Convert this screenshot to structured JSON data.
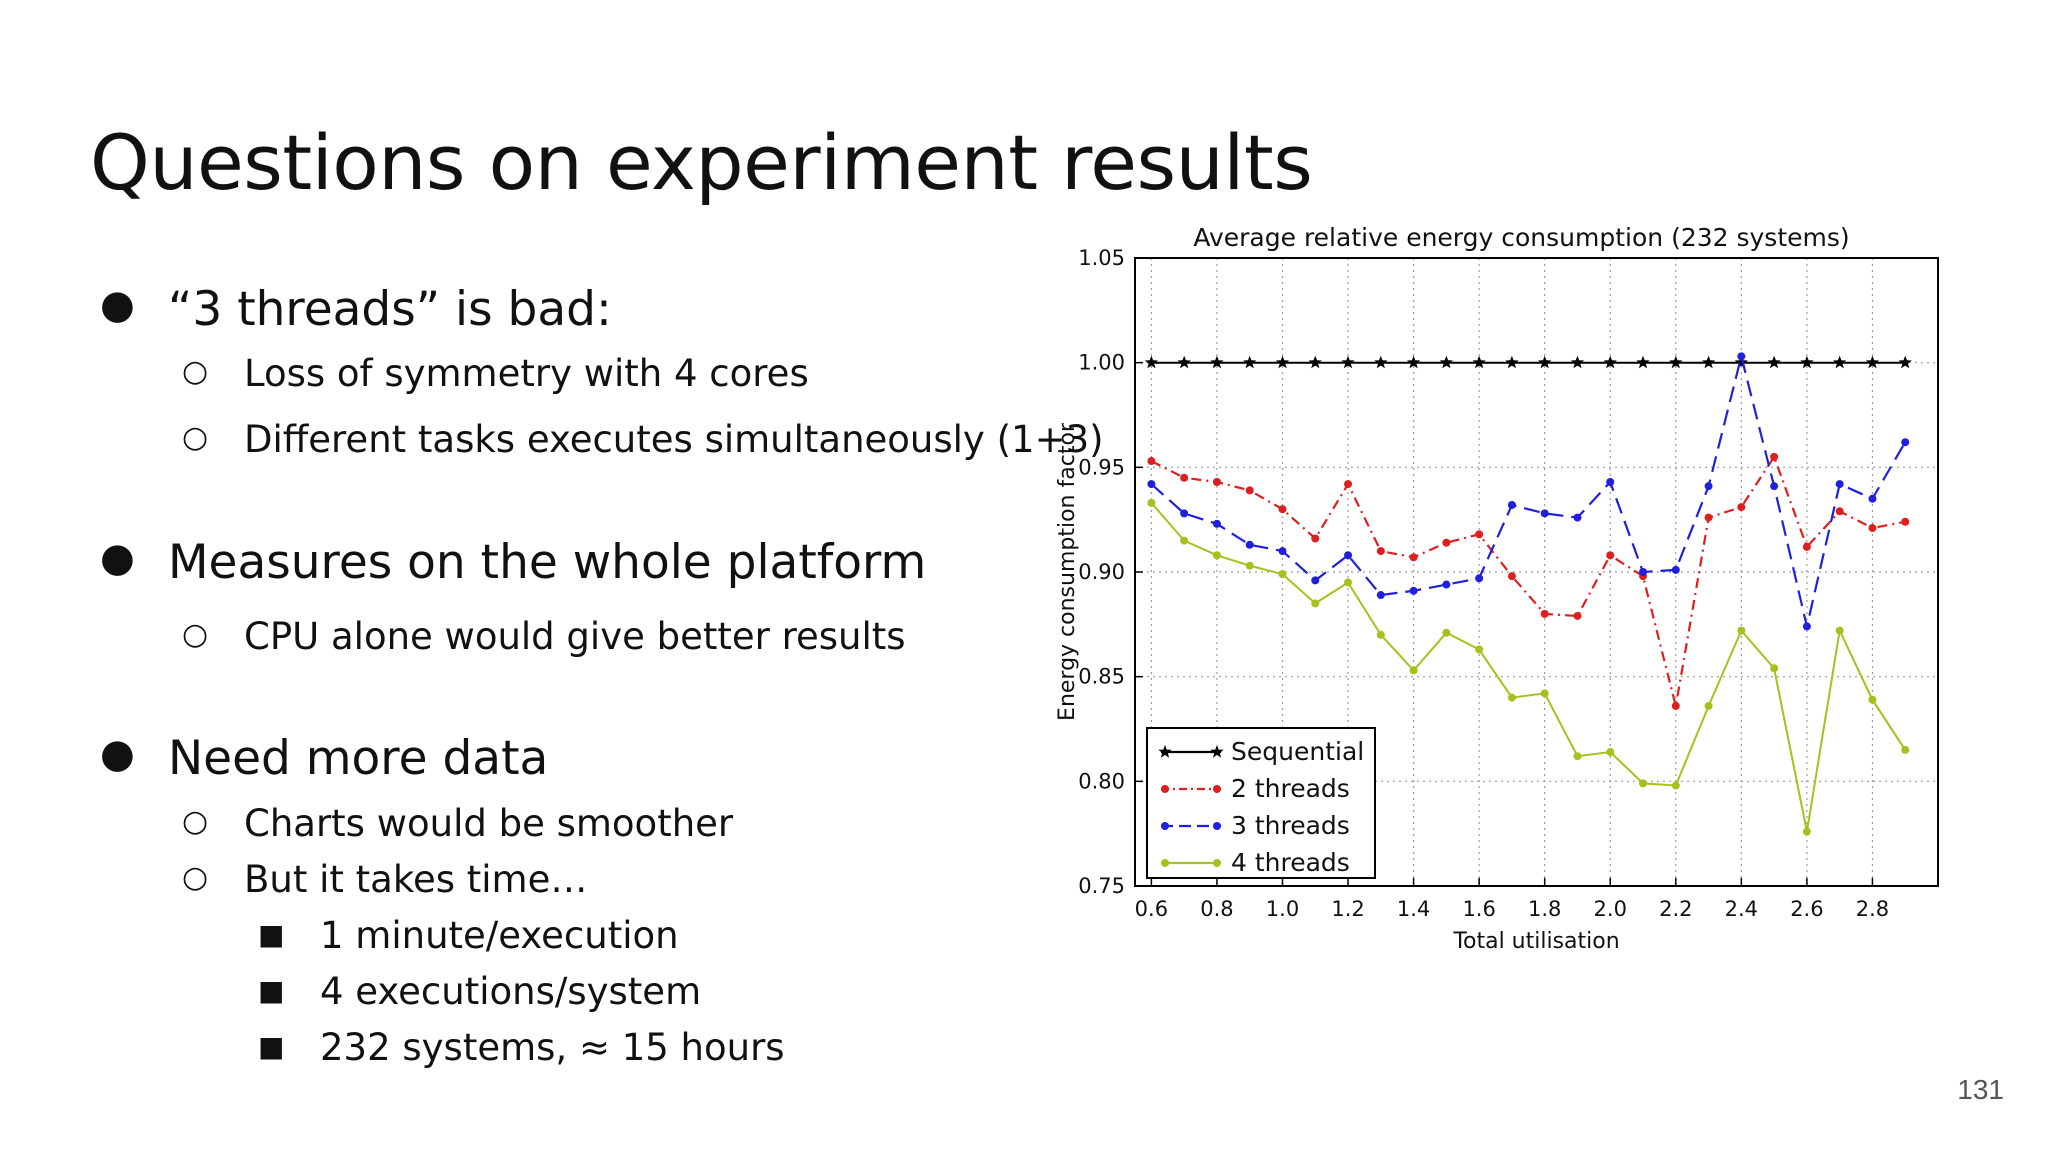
{
  "slide": {
    "title": "Questions on experiment results",
    "page_number": "131"
  },
  "bullets": [
    {
      "text": "“3 threads” is bad:",
      "children": [
        {
          "text": "Loss of symmetry with 4 cores"
        },
        {
          "text": "Different tasks executes simultaneously (1+3)"
        }
      ]
    },
    {
      "text": "Measures on the whole platform",
      "children": [
        {
          "text": "CPU alone would give better results"
        }
      ]
    },
    {
      "text": "Need more data",
      "children": [
        {
          "text": "Charts would be smoother"
        },
        {
          "text": "But it takes time…",
          "children": [
            {
              "text": "1 minute/execution"
            },
            {
              "text": "4 executions/system"
            },
            {
              "text": "232 systems, ≈ 15 hours"
            }
          ]
        }
      ]
    }
  ],
  "markers": {
    "level1": "●",
    "level2": "○",
    "level3": "■"
  },
  "chart_data": {
    "type": "line",
    "title": "Average relative energy consumption (232 systems)",
    "xlabel": "Total utilisation",
    "ylabel": "Energy consumption factor",
    "xlim": [
      0.55,
      3.0
    ],
    "ylim": [
      0.75,
      1.05
    ],
    "xticks": [
      0.6,
      0.8,
      1.0,
      1.2,
      1.4,
      1.6,
      1.8,
      2.0,
      2.2,
      2.4,
      2.6,
      2.8
    ],
    "xtick_labels": [
      "0.6",
      "0.8",
      "1.0",
      "1.2",
      "1.4",
      "1.6",
      "1.8",
      "2.0",
      "2.2",
      "2.4",
      "2.6",
      "2.8"
    ],
    "yticks": [
      0.75,
      0.8,
      0.85,
      0.9,
      0.95,
      1.0,
      1.05
    ],
    "ytick_labels": [
      "0.75",
      "0.80",
      "0.85",
      "0.90",
      "0.95",
      "1.00",
      "1.05"
    ],
    "grid": true,
    "legend_position": "lower-left",
    "x": [
      0.6,
      0.7,
      0.8,
      0.9,
      1.0,
      1.1,
      1.2,
      1.3,
      1.4,
      1.5,
      1.6,
      1.7,
      1.8,
      1.9,
      2.0,
      2.1,
      2.2,
      2.3,
      2.4,
      2.5,
      2.6,
      2.7,
      2.8,
      2.9
    ],
    "series": [
      {
        "name": "Sequential",
        "color": "#000000",
        "style": "solid",
        "marker": "star",
        "values": [
          1.0,
          1.0,
          1.0,
          1.0,
          1.0,
          1.0,
          1.0,
          1.0,
          1.0,
          1.0,
          1.0,
          1.0,
          1.0,
          1.0,
          1.0,
          1.0,
          1.0,
          1.0,
          1.0,
          1.0,
          1.0,
          1.0,
          1.0,
          1.0
        ]
      },
      {
        "name": "2 threads",
        "color": "#dd1f1f",
        "style": "dashdot",
        "marker": "dot",
        "values": [
          0.953,
          0.945,
          0.943,
          0.939,
          0.93,
          0.916,
          0.942,
          0.91,
          0.907,
          0.914,
          0.918,
          0.898,
          0.88,
          0.879,
          0.908,
          0.898,
          0.836,
          0.926,
          0.931,
          0.955,
          0.912,
          0.929,
          0.921,
          0.924
        ]
      },
      {
        "name": "3 threads",
        "color": "#1f1fdd",
        "style": "dashed",
        "marker": "dot",
        "values": [
          0.942,
          0.928,
          0.923,
          0.913,
          0.91,
          0.896,
          0.908,
          0.889,
          0.891,
          0.894,
          0.897,
          0.932,
          0.928,
          0.926,
          0.943,
          0.9,
          0.901,
          0.941,
          1.003,
          0.941,
          0.874,
          0.942,
          0.935,
          0.962
        ]
      },
      {
        "name": "4 threads",
        "color": "#a8bf1c",
        "style": "solid",
        "marker": "dot",
        "values": [
          0.933,
          0.915,
          0.908,
          0.903,
          0.899,
          0.885,
          0.895,
          0.87,
          0.853,
          0.871,
          0.863,
          0.84,
          0.842,
          0.812,
          0.814,
          0.799,
          0.798,
          0.836,
          0.872,
          0.854,
          0.776,
          0.872,
          0.839,
          0.815
        ]
      }
    ]
  }
}
